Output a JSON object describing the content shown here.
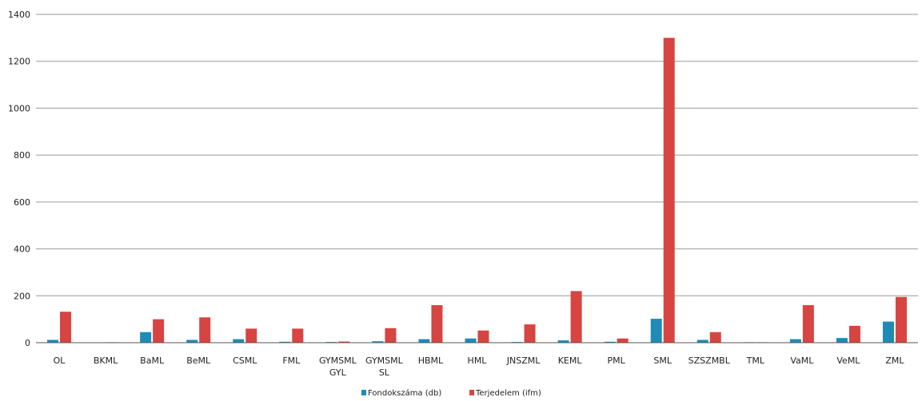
{
  "chart_data": {
    "type": "bar",
    "categories": [
      "OL",
      "BKML",
      "BaML",
      "BeML",
      "CSML",
      "FML",
      "GYMSML GYL",
      "GYMSML SL",
      "HBML",
      "HML",
      "JNSZML",
      "KEML",
      "PML",
      "SML",
      "SZSZMBL",
      "TML",
      "VaML",
      "VeML",
      "ZML"
    ],
    "series": [
      {
        "name": "Fondokszáma (db)",
        "color": "#1f8bb5",
        "values": [
          12,
          0,
          45,
          12,
          15,
          4,
          3,
          6,
          15,
          18,
          3,
          10,
          4,
          102,
          12,
          2,
          15,
          20,
          90
        ]
      },
      {
        "name": "Terjedelem (ifm)",
        "color": "#d64541",
        "values": [
          132,
          2,
          100,
          108,
          60,
          60,
          5,
          62,
          160,
          52,
          78,
          220,
          18,
          1300,
          45,
          2,
          160,
          72,
          195
        ]
      }
    ],
    "ylim": [
      0,
      1400
    ],
    "yticks": [
      0,
      200,
      400,
      600,
      800,
      1000,
      1200,
      1400
    ],
    "grid": true,
    "legend": "bottom-center"
  }
}
